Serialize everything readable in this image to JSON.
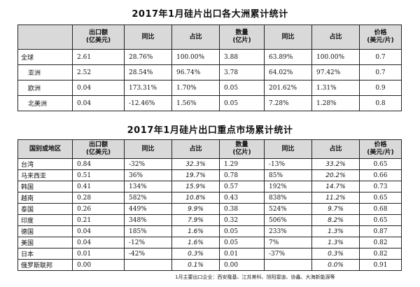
{
  "table1": {
    "title": "2017年1月硅片出口各大洲累计统计",
    "headers": [
      "",
      "出口额\n(亿美元)",
      "同比",
      "占比",
      "数量\n(亿片)",
      "同比",
      "占比",
      "价格\n(美元/片)"
    ],
    "rows": [
      [
        "全球",
        "2.61",
        "28.76%",
        "100.00%",
        "3.88",
        "63.89%",
        "100.00%",
        "0.7"
      ],
      [
        "亚洲",
        "2.52",
        "28.54%",
        "96.74%",
        "3.78",
        "64.02%",
        "97.42%",
        "0.7"
      ],
      [
        "欧洲",
        "0.04",
        "173.31%",
        "1.70%",
        "0.05",
        "201.62%",
        "1.31%",
        "0.9"
      ],
      [
        "北美洲",
        "0.04",
        "-12.46%",
        "1.56%",
        "0.05",
        "7.28%",
        "1.28%",
        "0.8"
      ]
    ]
  },
  "table2": {
    "title": "2017年1月硅片出口重点市场累计统计",
    "headers": [
      "国别或地区",
      "出口额\n(亿美元)",
      "同比",
      "占比",
      "数量\n(亿片)",
      "同比",
      "占比",
      "价格\n(美元/片)"
    ],
    "rows": [
      [
        "台湾",
        "0.84",
        "-32%",
        "32.3%",
        "1.29",
        "-13%",
        "33.2%",
        "0.65"
      ],
      [
        "马来西亚",
        "0.51",
        "36%",
        "19.7%",
        "0.78",
        "85%",
        "20.2%",
        "0.66"
      ],
      [
        "韩国",
        "0.41",
        "134%",
        "15.9%",
        "0.57",
        "192%",
        "14.7%",
        "0.73"
      ],
      [
        "越南",
        "0.28",
        "582%",
        "10.8%",
        "0.43",
        "838%",
        "11.2%",
        "0.65"
      ],
      [
        "泰国",
        "0.26",
        "449%",
        "9.9%",
        "0.38",
        "524%",
        "9.7%",
        "0.68"
      ],
      [
        "印度",
        "0.21",
        "348%",
        "7.9%",
        "0.32",
        "506%",
        "8.2%",
        "0.65"
      ],
      [
        "德国",
        "0.04",
        "185%",
        "1.6%",
        "0.05",
        "233%",
        "1.3%",
        "0.87"
      ],
      [
        "美国",
        "0.04",
        "-12%",
        "1.6%",
        "0.05",
        "7%",
        "1.3%",
        "0.82"
      ],
      [
        "日本",
        "0.01",
        "-42%",
        "0.3%",
        "0.01",
        "-37%",
        "0.3%",
        "0.82"
      ],
      [
        "俄罗斯联邦",
        "0.00",
        "",
        "0.1%",
        "0.00",
        "",
        "0.0%",
        "0.91"
      ]
    ]
  },
  "footnote": "1月主要出口企业：西安隆基、江苏美科、旭阳雷迪、协鑫、大海新能源等"
}
